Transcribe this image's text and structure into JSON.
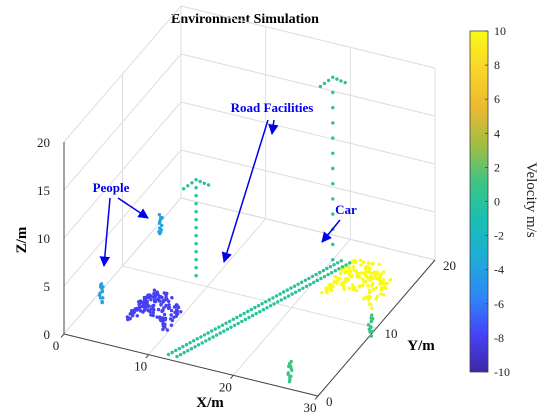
{
  "chart_data": {
    "type": "scatter",
    "title": "Environment Simulation",
    "xlabel": "X/m",
    "ylabel": "Y/m",
    "zlabel": "Z/m",
    "xlim": [
      0,
      30
    ],
    "ylim": [
      0,
      20
    ],
    "zlim": [
      0,
      20
    ],
    "xticks": [
      "0",
      "10",
      "20",
      "30"
    ],
    "yticks": [
      "0",
      "10",
      "20"
    ],
    "zticks": [
      "0",
      "5",
      "10",
      "15",
      "20"
    ],
    "grid": true,
    "colorbar": {
      "label": "Velocity  m/s",
      "range": [
        -10,
        10
      ],
      "ticks": [
        "10",
        "8",
        "6",
        "4",
        "2",
        "0",
        "-2",
        "-4",
        "-6",
        "-8",
        "-10"
      ],
      "colormap": [
        "#3e26a8",
        "#4743f8",
        "#2e87f7",
        "#1eacd6",
        "#18bfb5",
        "#3cc583",
        "#a3bd43",
        "#ecba30",
        "#fad529",
        "#f9fb15"
      ]
    },
    "annotations": [
      {
        "text": "People"
      },
      {
        "text": "Road Facilities"
      },
      {
        "text": "Car"
      }
    ],
    "objects": [
      {
        "kind": "car",
        "velocity": -8,
        "x": [
          5,
          10
        ],
        "y": [
          3,
          6
        ],
        "z": [
          0,
          2
        ]
      },
      {
        "kind": "car",
        "velocity": 10,
        "x": [
          22,
          28
        ],
        "y": [
          12,
          16
        ],
        "z": [
          0,
          2
        ]
      },
      {
        "kind": "person",
        "velocity": -4,
        "x": 1,
        "y": 5,
        "z": [
          0,
          2
        ]
      },
      {
        "kind": "person",
        "velocity": -4,
        "x": 1,
        "y": 15,
        "z": [
          0,
          2
        ]
      },
      {
        "kind": "person",
        "velocity": 1,
        "x": 26,
        "y": 1,
        "z": [
          0,
          2
        ]
      },
      {
        "kind": "person",
        "velocity": 1,
        "x": 30,
        "y": 9,
        "z": [
          0,
          2
        ]
      },
      {
        "kind": "road-line",
        "velocity": 0,
        "x": [
          12,
          21
        ],
        "y": [
          0.5,
          17
        ]
      },
      {
        "kind": "road-line",
        "velocity": 0,
        "x": [
          13,
          22
        ],
        "y": [
          0.5,
          17
        ]
      },
      {
        "kind": "pole",
        "velocity": 0,
        "x": 8,
        "y": 11,
        "z": [
          0,
          10
        ]
      },
      {
        "kind": "pole",
        "velocity": 0,
        "x": 20,
        "y": 17,
        "z": [
          0,
          19
        ]
      }
    ]
  }
}
